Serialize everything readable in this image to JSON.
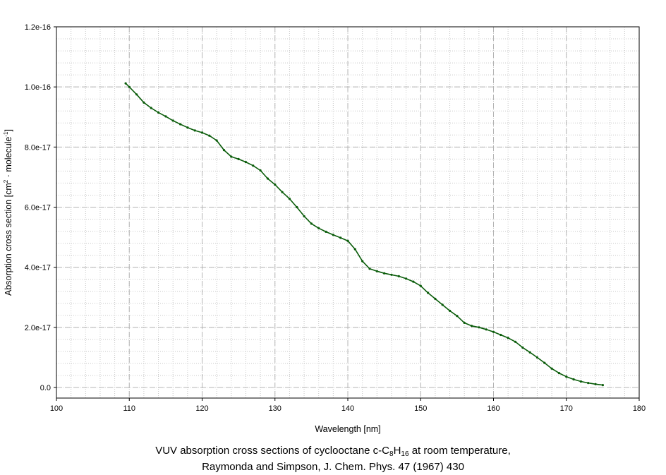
{
  "chart_data": {
    "type": "line",
    "xlabel": "Wavelength [nm]",
    "ylabel": {
      "prefix": "Absorption cross section [cm",
      "sup1": "2",
      "middle": " · molecule",
      "sup2": "-1",
      "suffix": "]"
    },
    "xlim": [
      100,
      180
    ],
    "ylim": [
      0,
      1.2e-16
    ],
    "x_ticks": [
      100,
      110,
      120,
      130,
      140,
      150,
      160,
      170,
      180
    ],
    "y_ticks": [
      0,
      2e-17,
      4e-17,
      6e-17,
      8e-17,
      1e-16,
      1.2e-16
    ],
    "y_tick_labels": [
      "0.0",
      "2.0e-17",
      "4.0e-17",
      "6.0e-17",
      "8.0e-17",
      "1.0e-16",
      "1.2e-16"
    ],
    "grid": true,
    "series": [
      {
        "color": "#0a5c0a",
        "x": [
          109.5,
          110,
          111,
          112,
          113,
          114,
          115,
          116,
          117,
          118,
          119,
          120,
          121,
          122,
          123,
          124,
          125,
          126,
          127,
          128,
          129,
          130,
          131,
          132,
          133,
          134,
          135,
          136,
          137,
          138,
          139,
          140,
          141,
          142,
          143,
          144,
          145,
          146,
          147,
          148,
          149,
          150,
          151,
          152,
          153,
          154,
          155,
          156,
          157,
          158,
          159,
          160,
          161,
          162,
          163,
          164,
          165,
          166,
          167,
          168,
          169,
          170,
          171,
          172,
          173,
          174,
          175
        ],
        "y": [
          1.012e-16,
          1e-16,
          9.75e-17,
          9.48e-17,
          9.3e-17,
          9.15e-17,
          9.02e-17,
          8.88e-17,
          8.76e-17,
          8.65e-17,
          8.55e-17,
          8.48e-17,
          8.38e-17,
          8.22e-17,
          7.9e-17,
          7.68e-17,
          7.6e-17,
          7.5e-17,
          7.38e-17,
          7.22e-17,
          6.95e-17,
          6.75e-17,
          6.5e-17,
          6.28e-17,
          6e-17,
          5.7e-17,
          5.45e-17,
          5.3e-17,
          5.18e-17,
          5.08e-17,
          4.98e-17,
          4.88e-17,
          4.6e-17,
          4.2e-17,
          3.95e-17,
          3.87e-17,
          3.8e-17,
          3.75e-17,
          3.7e-17,
          3.62e-17,
          3.52e-17,
          3.38e-17,
          3.15e-17,
          2.95e-17,
          2.75e-17,
          2.55e-17,
          2.38e-17,
          2.15e-17,
          2.05e-17,
          2e-17,
          1.93e-17,
          1.85e-17,
          1.75e-17,
          1.65e-17,
          1.52e-17,
          1.33e-17,
          1.17e-17,
          1e-17,
          8.2e-18,
          6.3e-18,
          4.8e-18,
          3.6e-18,
          2.7e-18,
          2e-18,
          1.5e-18,
          1.1e-18,
          8e-19
        ]
      }
    ]
  },
  "caption": {
    "line1_prefix": "VUV absorption cross sections of cyclooctane c-C",
    "sub1": "8",
    "mid": "H",
    "sub2": "16",
    "line1_suffix": " at room temperature,",
    "line2": "Raymonda and Simpson, J. Chem. Phys. 47 (1967) 430"
  }
}
